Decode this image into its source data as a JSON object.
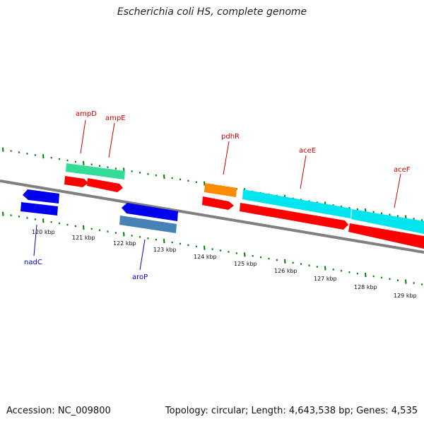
{
  "title": "Escherichia coli HS, complete genome",
  "footer": {
    "accession": "Accession: NC_009800",
    "topology": "Topology: circular; Length: 4,643,538 bp; Genes: 4,535"
  },
  "colors": {
    "backbone": "#808080",
    "ticks": "#008000",
    "forward_label": "#cc0000",
    "reverse_label": "#0000cc"
  },
  "scale_labels": [
    "120 kbp",
    "121 kbp",
    "122 kbp",
    "123 kbp",
    "124 kbp",
    "125 kbp",
    "126 kbp",
    "127 kbp",
    "128 kbp",
    "129 kbp"
  ],
  "genes": [
    {
      "name": "ampD",
      "strand": "forward",
      "label_color": "#cc0000"
    },
    {
      "name": "ampE",
      "strand": "forward",
      "label_color": "#cc0000"
    },
    {
      "name": "pdhR",
      "strand": "forward",
      "label_color": "#cc0000"
    },
    {
      "name": "aceE",
      "strand": "forward",
      "label_color": "#cc0000"
    },
    {
      "name": "aceF",
      "strand": "forward",
      "label_color": "#cc0000"
    },
    {
      "name": "nadC",
      "strand": "reverse",
      "label_color": "#0000cc"
    },
    {
      "name": "aroP",
      "strand": "reverse",
      "label_color": "#0000cc"
    }
  ]
}
